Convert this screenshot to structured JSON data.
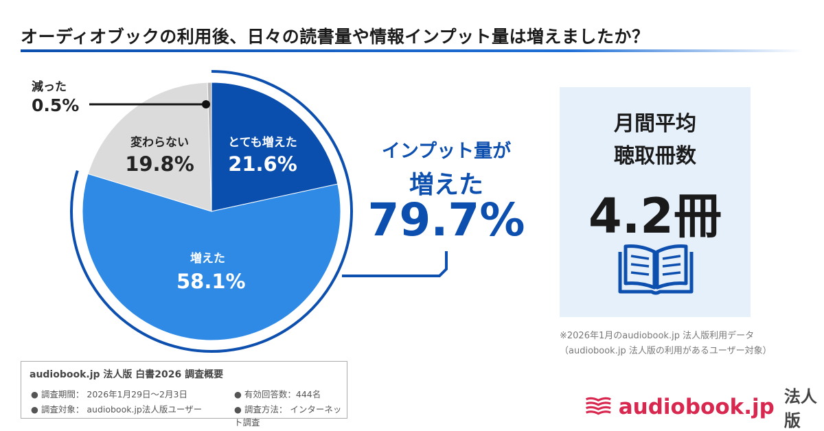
{
  "title": "オーディオブックの利用後、日々の読書量や情報インプット量は増えましたか？",
  "chart_data": {
    "type": "pie",
    "title": "オーディオブックの利用後、日々の読書量や情報インプット量は増えましたか？",
    "slices": [
      {
        "label": "とても増えた",
        "value": 21.6,
        "display": "21.6%",
        "color": "#0b4fae"
      },
      {
        "label": "増えた",
        "value": 58.1,
        "display": "58.1%",
        "color": "#2f8ae6"
      },
      {
        "label": "変わらない",
        "value": 19.8,
        "display": "19.8%",
        "color": "#dcdbdb"
      },
      {
        "label": "減った",
        "value": 0.5,
        "display": "0.5%",
        "color": "#b8b8b8"
      }
    ],
    "callout": {
      "line1": "インプット量が",
      "line2": "増えた",
      "value": "79.7%"
    }
  },
  "panel": {
    "line1": "月間平均",
    "line2": "聴取冊数",
    "value": "4.2冊",
    "icon": "open-book-icon"
  },
  "note": {
    "line1": "※2026年1月のaudiobook.jp 法人版利用データ",
    "line2": "（audiobook.jp 法人版の利用があるユーザー対象）"
  },
  "survey": {
    "heading": "audiobook.jp 法人版 白書2026 調査概要",
    "items": [
      "調査期間： 2026年1月29日～2月3日",
      "有効回答数：444名",
      "調査対象： audiobook.jp法人版ユーザー",
      "調査方法： インターネット調査"
    ]
  },
  "logo": {
    "text": "audiobook.jp",
    "suffix": "法人版",
    "color": "#d9284f"
  }
}
